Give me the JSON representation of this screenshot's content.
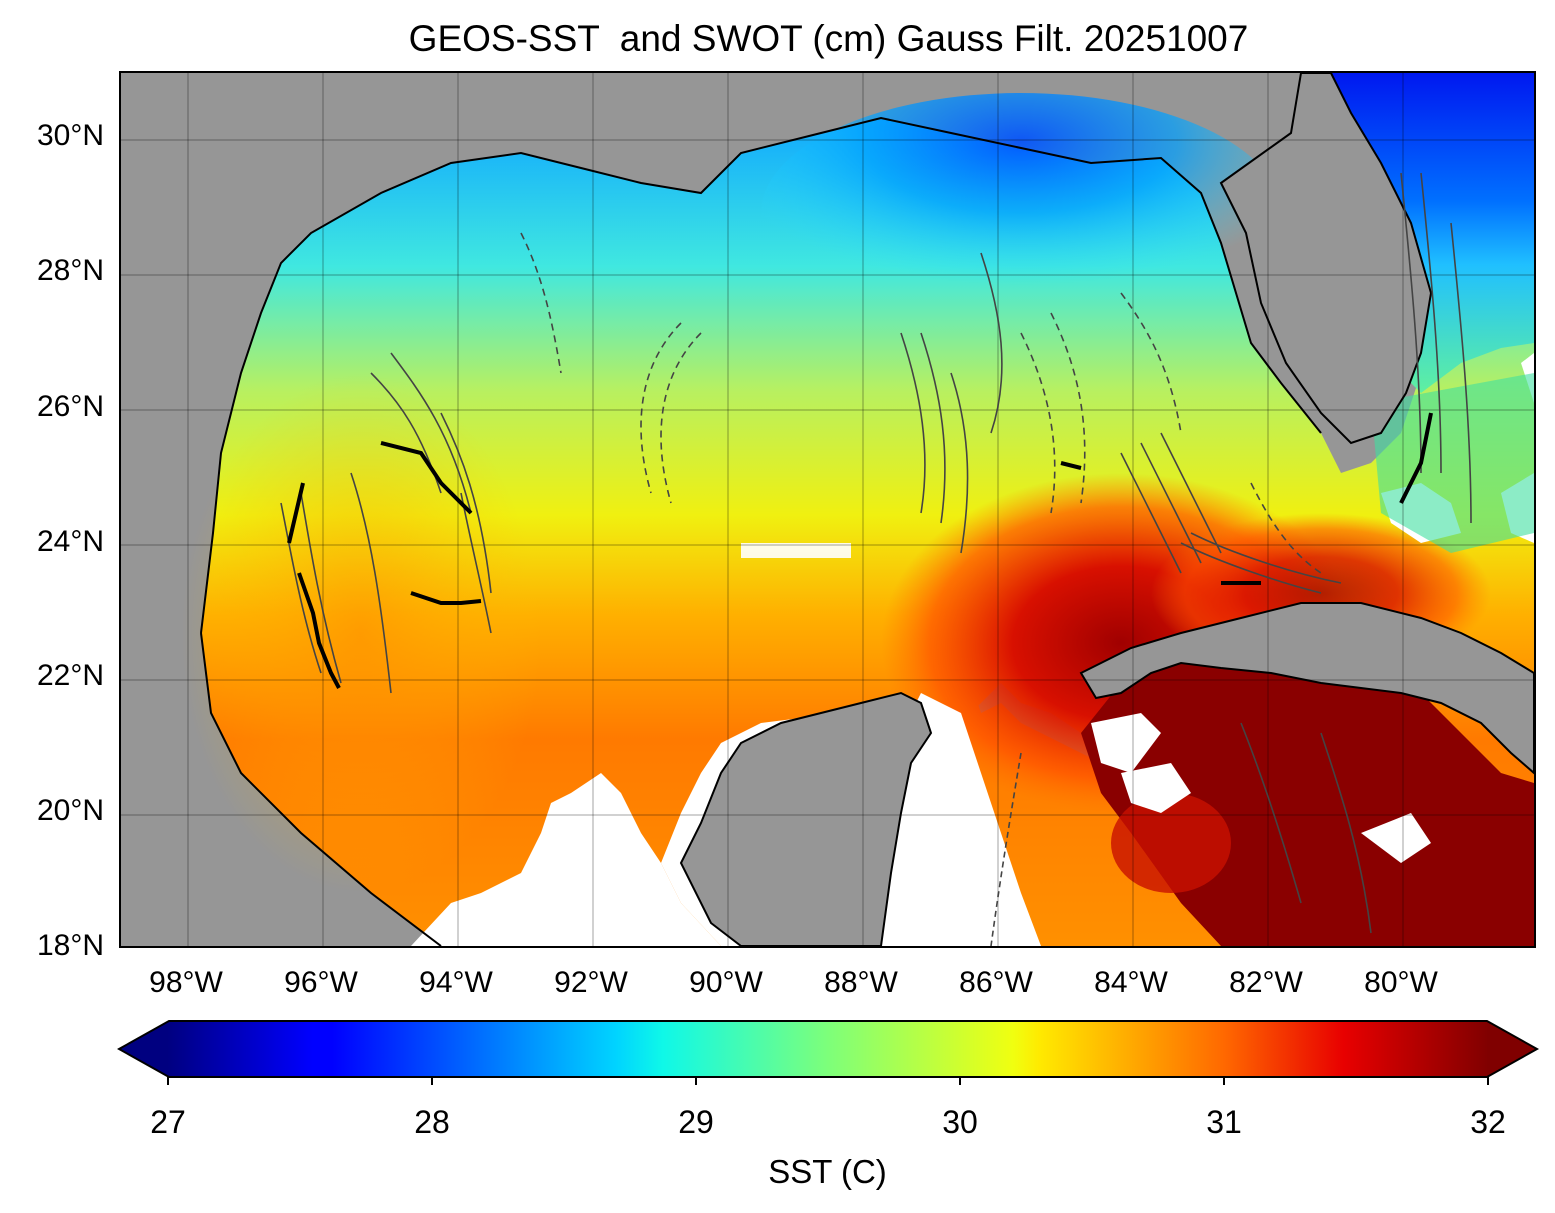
{
  "title": "GEOS-SST  and SWOT (cm) Gauss Filt. 20251007",
  "lat_ticks": [
    "30°N",
    "28°N",
    "26°N",
    "24°N",
    "22°N",
    "20°N",
    "18°N"
  ],
  "lon_ticks": [
    "98°W",
    "96°W",
    "94°W",
    "92°W",
    "90°W",
    "88°W",
    "86°W",
    "84°W",
    "82°W",
    "80°W"
  ],
  "colorbar": {
    "label": "SST (C)",
    "ticks": [
      "27",
      "28",
      "29",
      "30",
      "31",
      "32"
    ],
    "min": 27,
    "max": 32,
    "colormap": "jet",
    "extend": "both"
  },
  "colors": {
    "land": "#969696",
    "no_data": "#ffffff",
    "coastline": "#000000",
    "contour": "#444444"
  },
  "map": {
    "region": "Gulf of Mexico",
    "lon_range": [
      -99,
      -78
    ],
    "lat_range": [
      18,
      31
    ]
  }
}
